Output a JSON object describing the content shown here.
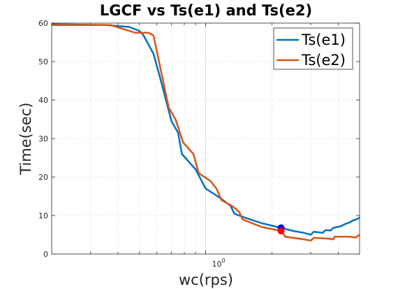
{
  "chart_data": {
    "type": "line",
    "title": "LGCF vs Ts(e1) and Ts(e2)",
    "xlabel": "wc(rps)",
    "ylabel": "Time(sec)",
    "xscale": "log",
    "xlim": [
      0.2,
      5.0
    ],
    "ylim": [
      0,
      60
    ],
    "yticks": [
      0,
      10,
      20,
      30,
      40,
      50,
      60
    ],
    "xtick_label": "10^0",
    "xtick_base": "10",
    "xtick_exp": "0",
    "grid": true,
    "legend_position": "top-right",
    "series": [
      {
        "name": "Ts(e1)",
        "color": "#0072BD",
        "points": [
          [
            0.2,
            59.7
          ],
          [
            0.35,
            59.5
          ],
          [
            0.45,
            59
          ],
          [
            0.5,
            58
          ],
          [
            0.52,
            57
          ],
          [
            0.58,
            52
          ],
          [
            0.62,
            46
          ],
          [
            0.7,
            34.5
          ],
          [
            0.75,
            31.5
          ],
          [
            0.78,
            26
          ],
          [
            0.9,
            22
          ],
          [
            1.0,
            17
          ],
          [
            1.1,
            15.5
          ],
          [
            1.2,
            14
          ],
          [
            1.3,
            12.5
          ],
          [
            1.35,
            10.5
          ],
          [
            1.5,
            9.5
          ],
          [
            1.8,
            8
          ],
          [
            2.2,
            6.8
          ],
          [
            2.5,
            6
          ],
          [
            2.8,
            5.5
          ],
          [
            3.0,
            5
          ],
          [
            3.1,
            5.8
          ],
          [
            3.4,
            5.5
          ],
          [
            3.5,
            6.2
          ],
          [
            3.7,
            6.1
          ],
          [
            3.8,
            6.8
          ],
          [
            4.1,
            7.2
          ],
          [
            4.3,
            7.8
          ],
          [
            4.5,
            8.2
          ],
          [
            4.7,
            8.8
          ],
          [
            4.85,
            9
          ],
          [
            5.0,
            9.5
          ]
        ]
      },
      {
        "name": "Ts(e2)",
        "color": "#D95319",
        "points": [
          [
            0.2,
            59.5
          ],
          [
            0.37,
            59.5
          ],
          [
            0.48,
            57.5
          ],
          [
            0.55,
            57.5
          ],
          [
            0.58,
            56.8
          ],
          [
            0.63,
            47
          ],
          [
            0.68,
            38
          ],
          [
            0.73,
            35
          ],
          [
            0.79,
            29
          ],
          [
            0.88,
            26
          ],
          [
            0.93,
            21
          ],
          [
            1.05,
            19
          ],
          [
            1.12,
            17
          ],
          [
            1.18,
            14
          ],
          [
            1.32,
            12.5
          ],
          [
            1.42,
            11
          ],
          [
            1.47,
            9
          ],
          [
            1.8,
            7
          ],
          [
            2.2,
            6
          ],
          [
            2.3,
            4.5
          ],
          [
            2.8,
            3.8
          ],
          [
            3.0,
            3.5
          ],
          [
            3.1,
            4.2
          ],
          [
            3.6,
            4
          ],
          [
            3.8,
            3.8
          ],
          [
            3.85,
            4.5
          ],
          [
            4.5,
            4.5
          ],
          [
            4.8,
            4.3
          ],
          [
            5.0,
            5
          ]
        ]
      }
    ],
    "markers": [
      {
        "x": 2.2,
        "y": 6.8,
        "color": "#0000FF"
      },
      {
        "x": 2.2,
        "y": 6.0,
        "color": "#FF0000"
      }
    ]
  }
}
